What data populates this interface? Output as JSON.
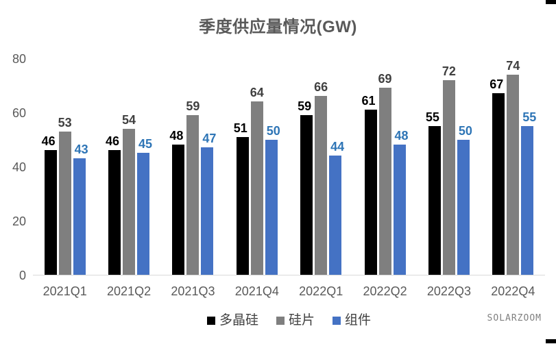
{
  "title": "季度供应量情况(GW)",
  "watermark": "SOLARZOOM",
  "colors": {
    "series_polysilicon": "#000000",
    "series_wafer": "#7f7f7f",
    "series_module": "#4472c4",
    "axis_text": "#595959",
    "baseline": "#d9d9d9",
    "title_text": "#595959",
    "blue_label": "#2e75b6",
    "gray_label": "#404040"
  },
  "chart_data": {
    "type": "bar",
    "title": "季度供应量情况(GW)",
    "xlabel": "",
    "ylabel": "",
    "categories": [
      "2021Q1",
      "2021Q2",
      "2021Q3",
      "2021Q4",
      "2022Q1",
      "2022Q2",
      "2022Q3",
      "2022Q4"
    ],
    "series": [
      {
        "name": "多晶硅",
        "color": "#000000",
        "label_color": "#000000",
        "label_dx": -3,
        "values": [
          46,
          46,
          48,
          51,
          59,
          61,
          55,
          67
        ]
      },
      {
        "name": "硅片",
        "color": "#7f7f7f",
        "label_color": "#404040",
        "label_dx": 0,
        "values": [
          53,
          54,
          59,
          64,
          66,
          69,
          72,
          74
        ]
      },
      {
        "name": "组件",
        "color": "#4472c4",
        "label_color": "#2e75b6",
        "label_dx": 3,
        "values": [
          43,
          45,
          47,
          50,
          44,
          48,
          50,
          55
        ]
      }
    ],
    "ylim": [
      0,
      80
    ],
    "yticks": [
      0,
      20,
      40,
      60,
      80
    ],
    "grid": false,
    "data_labels": true,
    "legend_position": "bottom"
  }
}
